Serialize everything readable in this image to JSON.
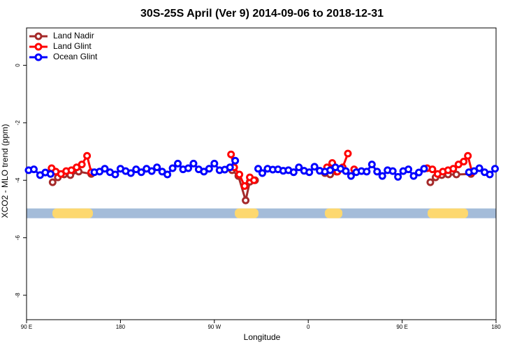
{
  "chart_data": {
    "type": "line",
    "title": "30S-25S April (Ver 9)   2014-09-06 to 2018-12-31",
    "x_label": "Longitude",
    "y_label": "XCO2 - MLO trend (ppm)",
    "xlim": [
      90,
      540
    ],
    "ylim": [
      -8.85,
      1.3
    ],
    "xticks": [
      {
        "value": 90,
        "label": "90 E"
      },
      {
        "value": 180,
        "label": "180"
      },
      {
        "value": 270,
        "label": "90 W"
      },
      {
        "value": 360,
        "label": "0"
      },
      {
        "value": 450,
        "label": "90 E"
      },
      {
        "value": 540,
        "label": "180"
      }
    ],
    "yticks": [
      0,
      -2,
      -4,
      -6,
      -8
    ],
    "legend": "top-left",
    "band_y": -5.15,
    "band_color": "#a4bcd9",
    "land_color": "#fdd86f",
    "land_ranges": [
      [
        114.8,
        153.6
      ],
      [
        289.6,
        312.3
      ],
      [
        375.9,
        392.7
      ],
      [
        474.4,
        513.2
      ]
    ],
    "series": [
      {
        "name": "Land Nadir",
        "color": "#a52a2a",
        "x": [
          115,
          120,
          126,
          132,
          140,
          152,
          null,
          287,
          293,
          300,
          304,
          309,
          null,
          376,
          381,
          387,
          null,
          477,
          482,
          488,
          494,
          502,
          516
        ],
        "values": [
          -4.07,
          -3.9,
          -3.8,
          -3.82,
          -3.7,
          -3.78,
          null,
          -3.65,
          -3.85,
          -4.7,
          -4.05,
          -4.0,
          null,
          -3.75,
          -3.8,
          -3.7,
          null,
          -4.07,
          -3.9,
          -3.82,
          -3.8,
          -3.8,
          -3.78
        ]
      },
      {
        "name": "Land Glint",
        "color": "#ff0000",
        "x": [
          114,
          118,
          123,
          128,
          133,
          138,
          143,
          148,
          152,
          null,
          286,
          289,
          294,
          299,
          304,
          308,
          null,
          378,
          383,
          388,
          393,
          398,
          null,
          404,
          null,
          474,
          479,
          484,
          489,
          494,
          499,
          504,
          509,
          513,
          517
        ],
        "values": [
          -3.58,
          -3.7,
          -3.78,
          -3.68,
          -3.65,
          -3.55,
          -3.45,
          -3.15,
          -3.72,
          null,
          -3.1,
          -3.55,
          -3.8,
          -4.2,
          -3.9,
          -4.0,
          null,
          -3.55,
          -3.4,
          -3.7,
          -3.55,
          -3.07,
          null,
          -3.62,
          null,
          -3.58,
          -3.62,
          -3.78,
          -3.7,
          -3.65,
          -3.6,
          -3.45,
          -3.35,
          -3.15,
          -3.72
        ]
      },
      {
        "name": "Ocean Glint",
        "color": "#0000ff",
        "x": [
          92,
          97,
          103,
          108,
          113,
          null,
          155,
          160,
          165,
          170,
          175,
          180,
          185,
          190,
          195,
          200,
          205,
          210,
          215,
          220,
          225,
          230,
          235,
          240,
          245,
          250,
          255,
          260,
          265,
          270,
          275,
          280,
          285,
          290,
          null,
          312,
          316,
          321,
          326,
          331,
          336,
          341,
          346,
          351,
          356,
          361,
          366,
          371,
          376,
          381,
          386,
          391,
          396,
          401,
          406,
          411,
          416,
          421,
          426,
          431,
          436,
          441,
          446,
          451,
          456,
          461,
          466,
          471,
          null,
          514,
          519,
          524,
          529,
          534,
          539
        ],
        "values": [
          -3.65,
          -3.62,
          -3.82,
          -3.73,
          -3.78,
          null,
          -3.72,
          -3.7,
          -3.6,
          -3.72,
          -3.8,
          -3.6,
          -3.68,
          -3.75,
          -3.62,
          -3.72,
          -3.6,
          -3.68,
          -3.55,
          -3.7,
          -3.8,
          -3.58,
          -3.42,
          -3.62,
          -3.58,
          -3.42,
          -3.62,
          -3.7,
          -3.6,
          -3.42,
          -3.65,
          -3.63,
          -3.55,
          -3.32,
          null,
          -3.6,
          -3.75,
          -3.6,
          -3.63,
          -3.62,
          -3.67,
          -3.65,
          -3.72,
          -3.55,
          -3.67,
          -3.72,
          -3.53,
          -3.67,
          -3.7,
          -3.65,
          -3.55,
          -3.6,
          -3.68,
          -3.85,
          -3.72,
          -3.68,
          -3.7,
          -3.45,
          -3.7,
          -3.85,
          -3.65,
          -3.68,
          -3.88,
          -3.68,
          -3.62,
          -3.85,
          -3.73,
          -3.6,
          null,
          -3.72,
          -3.68,
          -3.58,
          -3.72,
          -3.8,
          -3.6
        ]
      }
    ]
  }
}
